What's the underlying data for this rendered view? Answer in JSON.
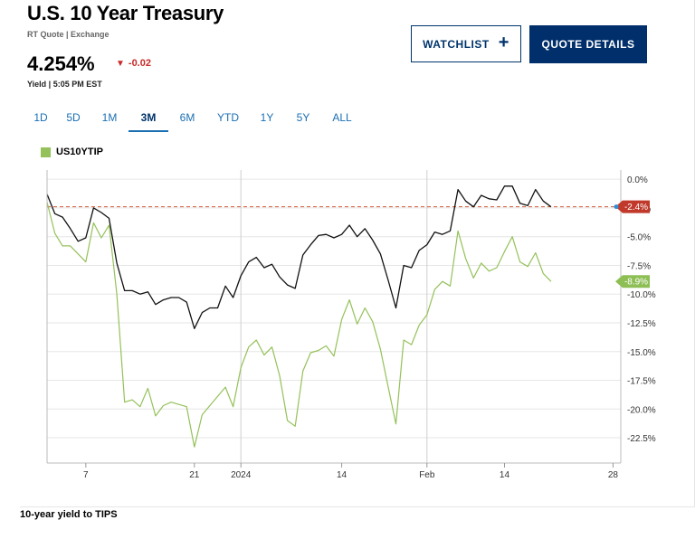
{
  "header": {
    "title": "U.S. 10 Year Treasury",
    "subtitle": "RT Quote | Exchange",
    "price": "4.254%",
    "change": "-0.02",
    "yield_label": "Yield | 5:05 PM EST"
  },
  "buttons": {
    "watchlist": "WATCHLIST",
    "quote_details": "QUOTE DETAILS"
  },
  "tabs": [
    {
      "label": "1D"
    },
    {
      "label": "5D"
    },
    {
      "label": "1M"
    },
    {
      "label": "3M"
    },
    {
      "label": "6M"
    },
    {
      "label": "YTD"
    },
    {
      "label": "1Y"
    },
    {
      "label": "5Y"
    },
    {
      "label": "ALL"
    }
  ],
  "active_tab": "3M",
  "legend": {
    "label": "US10YTIP"
  },
  "colors": {
    "tips": "#94c159",
    "yield": "#111111",
    "ref_line": "#d65a3a",
    "accent": "#012f6b"
  },
  "caption": "10-year yield to TIPS",
  "chart_data": {
    "type": "line",
    "x_ticks": [
      {
        "label": "7",
        "x": 4
      },
      {
        "label": "21",
        "x": 18
      },
      {
        "label": "2024",
        "x": 24,
        "gridline": true
      },
      {
        "label": "14",
        "x": 37
      },
      {
        "label": "Feb",
        "x": 48,
        "gridline": true
      },
      {
        "label": "14",
        "x": 58
      },
      {
        "label": "28",
        "x": 72
      }
    ],
    "x_range": [
      -1,
      73
    ],
    "y_ticks": [
      0,
      -2.5,
      -5,
      -7.5,
      -10,
      -12.5,
      -15,
      -17.5,
      -20,
      -22.5
    ],
    "y_tick_labels": [
      "0.0%",
      "-2.5%",
      "-5.0%",
      "-7.5%",
      "-10.0%",
      "-12.5%",
      "-15.0%",
      "-17.5%",
      "-20.0%",
      "-22.5%"
    ],
    "ylim": [
      -24.7,
      0.8
    ],
    "grid": true,
    "reference_line": -2.4,
    "series": [
      {
        "name": "",
        "color": "#111111",
        "last_label": "-2.4%",
        "points": [
          [
            -1,
            -1.3
          ],
          [
            0,
            -3.0
          ],
          [
            1,
            -3.3
          ],
          [
            2,
            -4.3
          ],
          [
            3,
            -5.4
          ],
          [
            4,
            -5.1
          ],
          [
            5,
            -2.5
          ],
          [
            6,
            -2.9
          ],
          [
            7,
            -3.4
          ],
          [
            8,
            -7.3
          ],
          [
            9,
            -9.7
          ],
          [
            10,
            -9.7
          ],
          [
            11,
            -10.0
          ],
          [
            12,
            -9.8
          ],
          [
            13,
            -10.9
          ],
          [
            14,
            -10.5
          ],
          [
            15,
            -10.3
          ],
          [
            16,
            -10.3
          ],
          [
            17,
            -10.7
          ],
          [
            18,
            -13.0
          ],
          [
            19,
            -11.6
          ],
          [
            20,
            -11.2
          ],
          [
            21,
            -11.2
          ],
          [
            22,
            -9.3
          ],
          [
            23,
            -10.3
          ],
          [
            24,
            -8.4
          ],
          [
            25,
            -7.2
          ],
          [
            26,
            -6.8
          ],
          [
            27,
            -7.7
          ],
          [
            28,
            -7.4
          ],
          [
            29,
            -8.5
          ],
          [
            30,
            -9.2
          ],
          [
            31,
            -9.5
          ],
          [
            32,
            -6.6
          ],
          [
            33,
            -5.7
          ],
          [
            34,
            -4.9
          ],
          [
            35,
            -4.8
          ],
          [
            36,
            -5.1
          ],
          [
            37,
            -4.8
          ],
          [
            38,
            -4.0
          ],
          [
            39,
            -5.0
          ],
          [
            40,
            -4.3
          ],
          [
            41,
            -5.3
          ],
          [
            42,
            -6.5
          ],
          [
            43,
            -8.8
          ],
          [
            44,
            -11.2
          ],
          [
            45,
            -7.5
          ],
          [
            46,
            -7.7
          ],
          [
            47,
            -6.2
          ],
          [
            48,
            -5.7
          ],
          [
            49,
            -4.6
          ],
          [
            50,
            -4.8
          ],
          [
            51,
            -4.5
          ],
          [
            52,
            -0.9
          ],
          [
            53,
            -1.9
          ],
          [
            54,
            -2.4
          ],
          [
            55,
            -1.4
          ],
          [
            56,
            -1.7
          ],
          [
            57,
            -1.8
          ],
          [
            58,
            -0.6
          ],
          [
            59,
            -0.6
          ],
          [
            60,
            -2.1
          ],
          [
            61,
            -2.3
          ],
          [
            62,
            -0.9
          ],
          [
            63,
            -1.9
          ],
          [
            64,
            -2.4
          ]
        ]
      },
      {
        "name": "US10YTIP",
        "color": "#94c159",
        "last_label": "-8.9%",
        "points": [
          [
            -1,
            -2.0
          ],
          [
            0,
            -4.7
          ],
          [
            1,
            -5.8
          ],
          [
            2,
            -5.8
          ],
          [
            3,
            -6.5
          ],
          [
            4,
            -7.2
          ],
          [
            5,
            -3.8
          ],
          [
            6,
            -5.1
          ],
          [
            7,
            -4.0
          ],
          [
            8,
            -10.0
          ],
          [
            9,
            -19.4
          ],
          [
            10,
            -19.2
          ],
          [
            11,
            -19.8
          ],
          [
            12,
            -18.2
          ],
          [
            13,
            -20.6
          ],
          [
            14,
            -19.7
          ],
          [
            15,
            -19.4
          ],
          [
            16,
            -19.6
          ],
          [
            17,
            -19.8
          ],
          [
            18,
            -23.3
          ],
          [
            19,
            -20.5
          ],
          [
            20,
            -19.7
          ],
          [
            21,
            -18.9
          ],
          [
            22,
            -18.1
          ],
          [
            23,
            -19.8
          ],
          [
            24,
            -16.4
          ],
          [
            25,
            -14.6
          ],
          [
            26,
            -14.0
          ],
          [
            27,
            -15.3
          ],
          [
            28,
            -14.6
          ],
          [
            29,
            -17.1
          ],
          [
            30,
            -21.0
          ],
          [
            31,
            -21.5
          ],
          [
            32,
            -16.7
          ],
          [
            33,
            -15.1
          ],
          [
            34,
            -14.9
          ],
          [
            35,
            -14.5
          ],
          [
            36,
            -15.4
          ],
          [
            37,
            -12.2
          ],
          [
            38,
            -10.5
          ],
          [
            39,
            -12.6
          ],
          [
            40,
            -11.2
          ],
          [
            41,
            -12.4
          ],
          [
            42,
            -14.8
          ],
          [
            43,
            -18.1
          ],
          [
            44,
            -21.3
          ],
          [
            45,
            -14.0
          ],
          [
            46,
            -14.4
          ],
          [
            47,
            -12.7
          ],
          [
            48,
            -11.8
          ],
          [
            49,
            -9.6
          ],
          [
            50,
            -8.9
          ],
          [
            51,
            -9.3
          ],
          [
            52,
            -4.5
          ],
          [
            53,
            -6.9
          ],
          [
            54,
            -8.6
          ],
          [
            55,
            -7.3
          ],
          [
            56,
            -8.0
          ],
          [
            57,
            -7.7
          ],
          [
            58,
            -6.3
          ],
          [
            59,
            -5.0
          ],
          [
            60,
            -7.2
          ],
          [
            61,
            -7.6
          ],
          [
            62,
            -6.4
          ],
          [
            63,
            -8.2
          ],
          [
            64,
            -8.9
          ]
        ]
      }
    ]
  }
}
